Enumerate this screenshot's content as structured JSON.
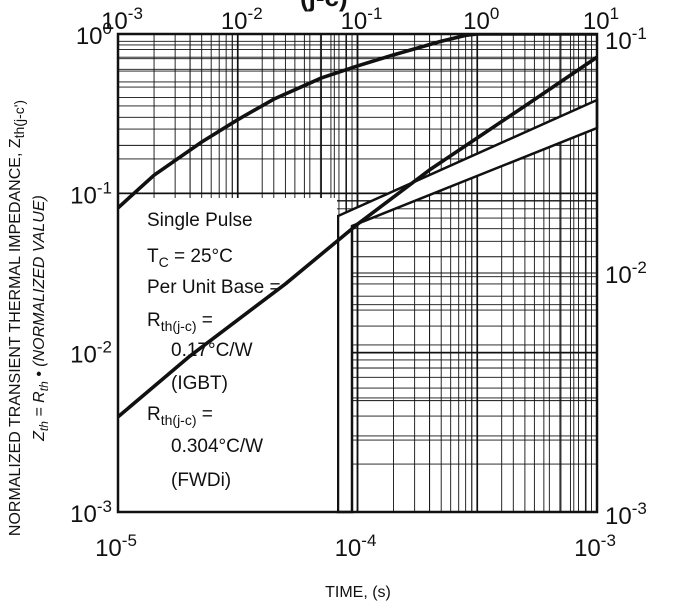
{
  "chart_data": {
    "type": "line",
    "scale": "log-log",
    "grid": true,
    "ylabel_main": "NORMALIZED TRANSIENT THERMAL IMPEDANCE, Z",
    "ylabel_main_sub": "th(j-c')",
    "ylabel_second_prefix": "Z",
    "ylabel_second_sub1": "th",
    "ylabel_second_eq": " = R",
    "ylabel_second_sub2": "th",
    "ylabel_second_suffix": " • (NORMALIZED VALUE)",
    "xlabel": "TIME, (s)",
    "top_title_fragment": "(j-c)",
    "panels": [
      {
        "name": "long-time",
        "x_axis_position": "top",
        "y_axis_position": "left",
        "xlim": [
          0.001,
          10
        ],
        "ylim": [
          0.001,
          1
        ],
        "x_tick_labels": [
          {
            "base": "10",
            "exp": "-3"
          },
          {
            "base": "10",
            "exp": "-2"
          },
          {
            "base": "10",
            "exp": "-1"
          },
          {
            "base": "10",
            "exp": "0"
          },
          {
            "base": "10",
            "exp": "1"
          }
        ],
        "y_tick_labels": [
          {
            "base": "10",
            "exp": "0"
          },
          {
            "base": "10",
            "exp": "-1"
          },
          {
            "base": "10",
            "exp": "-2"
          },
          {
            "base": "10",
            "exp": "-3"
          }
        ],
        "curve": {
          "x": [
            0.001,
            0.002,
            0.005,
            0.01,
            0.02,
            0.05,
            0.1,
            0.2,
            0.5,
            0.8,
            1.0,
            10
          ],
          "y": [
            0.081,
            0.13,
            0.21,
            0.29,
            0.39,
            0.53,
            0.63,
            0.74,
            0.9,
            0.98,
            1.0,
            1.0
          ]
        }
      },
      {
        "name": "short-time",
        "x_axis_position": "bottom",
        "y_axis_position": "right",
        "xlim": [
          1e-05,
          0.001
        ],
        "ylim": [
          0.001,
          0.1
        ],
        "x_tick_labels": [
          {
            "base": "10",
            "exp": "-5"
          },
          {
            "base": "10",
            "exp": "-4"
          },
          {
            "base": "10",
            "exp": "-3"
          }
        ],
        "y_tick_labels": [
          {
            "base": "10",
            "exp": "-1"
          },
          {
            "base": "10",
            "exp": "-2"
          },
          {
            "base": "10",
            "exp": "-3"
          }
        ],
        "curve": {
          "x": [
            1e-05,
            2e-05,
            5e-05,
            0.0001,
            0.0002,
            0.0005,
            0.001
          ],
          "y": [
            0.0025,
            0.0045,
            0.009,
            0.016,
            0.027,
            0.05,
            0.08
          ]
        }
      }
    ]
  },
  "note": {
    "line1": "Single Pulse",
    "line2_prefix": "T",
    "line2_sub": "C",
    "line2_rest": " = 25°C",
    "line3": "Per Unit Base =",
    "line4_prefix": "R",
    "line4_sub": "th(j-c)",
    "line4_rest": " =",
    "line5": "0.17°C/W",
    "line6": "(IGBT)",
    "line7_prefix": "R",
    "line7_sub": "th(j-c)",
    "line7_rest": " =",
    "line8": "0.304°C/W",
    "line9": "(FWDi)"
  }
}
